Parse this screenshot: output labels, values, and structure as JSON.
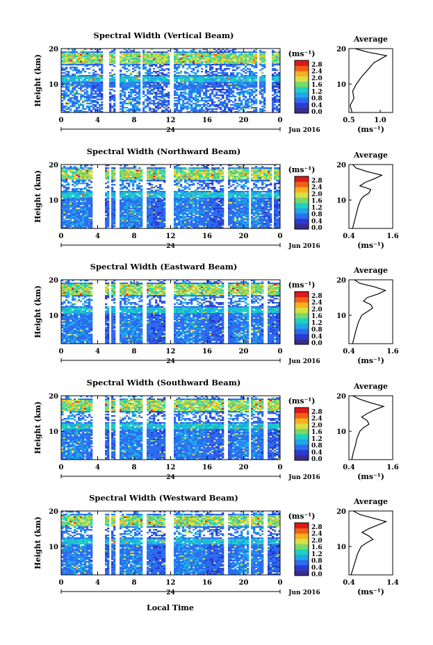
{
  "figure": {
    "xlabel": "Local Time",
    "date_label": "Jun 2016",
    "day_label": "24",
    "colorbar_unit": "(ms⁻¹)",
    "colorbar_ticks": [
      "2.8",
      "2.4",
      "2.0",
      "1.6",
      "1.2",
      "0.8",
      "0.4",
      "0.0"
    ],
    "ylabel": "Height (km)",
    "avg_title": "Average",
    "avg_unit": "(ms⁻¹)",
    "colors": {
      "palette": [
        "#3a2d8f",
        "#2a3cd0",
        "#2d6cf0",
        "#1fa8e8",
        "#20d0c0",
        "#7ad86a",
        "#d8e040",
        "#f8b020",
        "#f06018",
        "#e01818"
      ],
      "gap": "#ffffff"
    }
  },
  "chart_data": [
    {
      "type": "heatmap",
      "title": "Spectral Width (Vertical Beam)",
      "x_ticks": [
        "0",
        "4",
        "8",
        "12",
        "16",
        "20",
        "0"
      ],
      "y_ticks": [
        "20",
        "10"
      ],
      "xlim": [
        0,
        24
      ],
      "ylim": [
        2,
        20
      ],
      "colorbar_range": [
        0.0,
        2.8
      ],
      "data_gaps_hours": [
        [
          4.6,
          5.2
        ],
        [
          6.0,
          6.3
        ],
        [
          8.6,
          9.0
        ],
        [
          11.8,
          12.3
        ],
        [
          21.4,
          21.6
        ],
        [
          22.3,
          23.0
        ]
      ],
      "average_profile": {
        "xlim": [
          0.5,
          1.2
        ],
        "x_ticks": [
          "0.5",
          "1.0"
        ],
        "y_ticks": [
          "20",
          "10"
        ],
        "height_km": [
          2,
          4,
          6,
          8,
          10,
          12,
          14,
          15,
          16,
          17,
          18,
          19,
          20
        ],
        "width_ms": [
          0.55,
          0.52,
          0.58,
          0.56,
          0.62,
          0.7,
          0.8,
          0.85,
          0.9,
          1.0,
          1.1,
          0.8,
          0.6
        ]
      }
    },
    {
      "type": "heatmap",
      "title": "Spectral Width (Northward Beam)",
      "x_ticks": [
        "0",
        "4",
        "8",
        "12",
        "16",
        "20",
        "0"
      ],
      "y_ticks": [
        "20",
        "10"
      ],
      "xlim": [
        0,
        24
      ],
      "ylim": [
        2,
        20
      ],
      "colorbar_range": [
        0.0,
        2.8
      ],
      "data_gaps_hours": [
        [
          3.5,
          4.7
        ],
        [
          5.2,
          5.5
        ],
        [
          6.0,
          6.3
        ],
        [
          9.0,
          9.3
        ],
        [
          11.5,
          12.4
        ],
        [
          17.9,
          18.2
        ],
        [
          20.6,
          20.9
        ],
        [
          23.1,
          23.3
        ]
      ],
      "average_profile": {
        "xlim": [
          0.4,
          1.6
        ],
        "x_ticks": [
          "0.4",
          "1.6"
        ],
        "y_ticks": [
          "20",
          "10"
        ],
        "height_km": [
          2,
          4,
          6,
          8,
          10,
          11,
          12,
          13,
          14,
          15,
          16,
          17,
          18,
          19,
          20
        ],
        "width_ms": [
          0.5,
          0.55,
          0.6,
          0.65,
          0.72,
          0.8,
          0.95,
          1.0,
          0.7,
          0.85,
          1.1,
          1.3,
          0.9,
          0.6,
          0.5
        ]
      }
    },
    {
      "type": "heatmap",
      "title": "Spectral Width (Eastward Beam)",
      "x_ticks": [
        "0",
        "4",
        "8",
        "12",
        "16",
        "20",
        "0"
      ],
      "y_ticks": [
        "20",
        "10"
      ],
      "xlim": [
        0,
        24
      ],
      "ylim": [
        2,
        20
      ],
      "colorbar_range": [
        0.0,
        2.8
      ],
      "data_gaps_hours": [
        [
          3.5,
          4.7
        ],
        [
          5.2,
          5.5
        ],
        [
          6.0,
          6.3
        ],
        [
          9.0,
          9.3
        ],
        [
          11.5,
          12.4
        ],
        [
          17.9,
          18.2
        ],
        [
          20.6,
          20.9
        ],
        [
          22.2,
          22.6
        ]
      ],
      "average_profile": {
        "xlim": [
          0.4,
          1.6
        ],
        "x_ticks": [
          "0.4",
          "1.6"
        ],
        "y_ticks": [
          "20",
          "10"
        ],
        "height_km": [
          2,
          4,
          6,
          8,
          10,
          11,
          12,
          13,
          14,
          15,
          16,
          17,
          18,
          19,
          20
        ],
        "width_ms": [
          0.5,
          0.55,
          0.6,
          0.66,
          0.75,
          0.9,
          1.05,
          1.0,
          0.8,
          0.9,
          1.2,
          1.4,
          1.1,
          0.7,
          0.55
        ]
      }
    },
    {
      "type": "heatmap",
      "title": "Spectral Width (Southward Beam)",
      "x_ticks": [
        "0",
        "4",
        "8",
        "12",
        "16",
        "20",
        "0"
      ],
      "y_ticks": [
        "20",
        "10"
      ],
      "xlim": [
        0,
        24
      ],
      "ylim": [
        2,
        20
      ],
      "colorbar_range": [
        0.0,
        2.8
      ],
      "data_gaps_hours": [
        [
          3.5,
          4.7
        ],
        [
          5.2,
          5.5
        ],
        [
          6.0,
          6.3
        ],
        [
          9.0,
          9.3
        ],
        [
          11.5,
          12.4
        ],
        [
          17.9,
          18.2
        ],
        [
          20.6,
          20.9
        ],
        [
          22.2,
          22.6
        ]
      ],
      "average_profile": {
        "xlim": [
          0.4,
          1.6
        ],
        "x_ticks": [
          "0.4",
          "1.6"
        ],
        "y_ticks": [
          "20",
          "10"
        ],
        "height_km": [
          2,
          4,
          6,
          8,
          10,
          11,
          12,
          13,
          14,
          15,
          16,
          17,
          18,
          19,
          20
        ],
        "width_ms": [
          0.48,
          0.52,
          0.58,
          0.62,
          0.7,
          0.8,
          0.95,
          0.9,
          0.75,
          0.9,
          1.1,
          1.35,
          1.0,
          0.7,
          0.5
        ]
      }
    },
    {
      "type": "heatmap",
      "title": "Spectral Width (Westward Beam)",
      "x_ticks": [
        "0",
        "4",
        "8",
        "12",
        "16",
        "20",
        "0"
      ],
      "y_ticks": [
        "20",
        "10"
      ],
      "xlim": [
        0,
        24
      ],
      "ylim": [
        2,
        20
      ],
      "colorbar_range": [
        0.0,
        2.8
      ],
      "data_gaps_hours": [
        [
          3.5,
          4.7
        ],
        [
          5.2,
          5.5
        ],
        [
          6.0,
          6.3
        ],
        [
          9.0,
          9.3
        ],
        [
          11.5,
          12.4
        ],
        [
          17.9,
          18.2
        ],
        [
          20.6,
          20.9
        ],
        [
          22.2,
          22.6
        ]
      ],
      "average_profile": {
        "xlim": [
          0.4,
          1.4
        ],
        "x_ticks": [
          "0.4",
          "1.4"
        ],
        "y_ticks": [
          "20",
          "10"
        ],
        "height_km": [
          2,
          4,
          6,
          8,
          10,
          11,
          12,
          13,
          14,
          15,
          16,
          17,
          18,
          19,
          20
        ],
        "width_ms": [
          0.45,
          0.5,
          0.55,
          0.6,
          0.68,
          0.8,
          0.95,
          0.85,
          0.7,
          0.85,
          1.05,
          1.25,
          0.95,
          0.65,
          0.5
        ]
      }
    }
  ]
}
